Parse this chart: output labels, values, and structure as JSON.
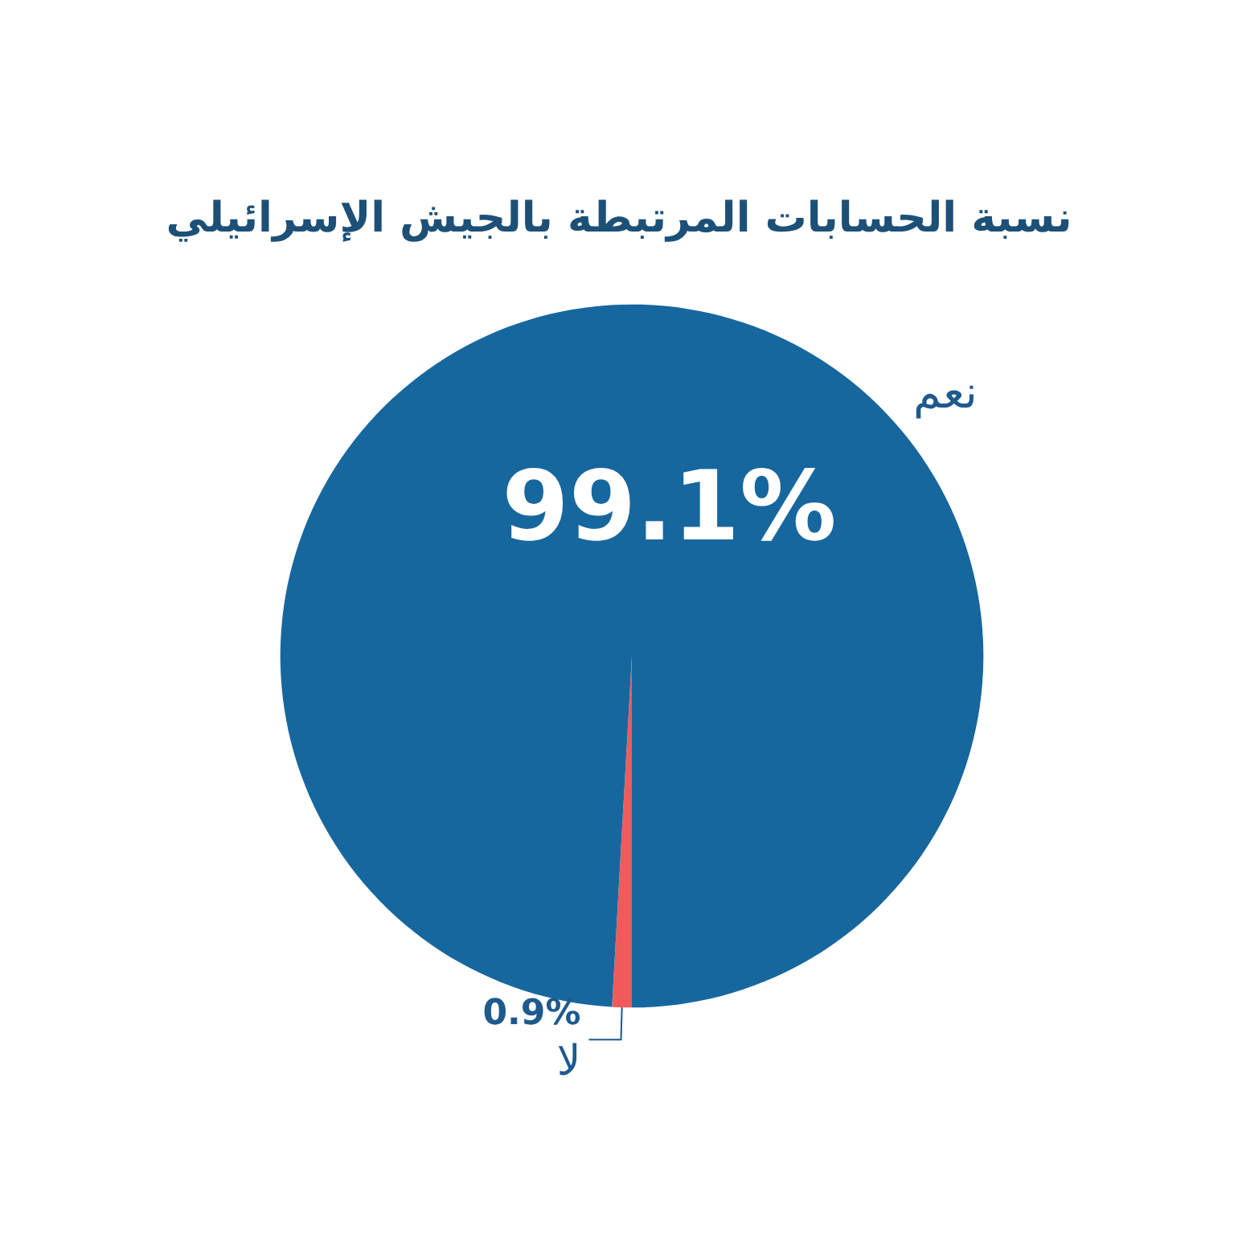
{
  "chart_data": {
    "type": "pie",
    "title": "نسبة الحسابات المرتبطة بالجيش الإسرائيلي",
    "categories": [
      "لا",
      "نعم"
    ],
    "values": [
      0.9,
      99.1
    ],
    "colors": [
      "#ef5b5b",
      "#17679f"
    ],
    "value_labels": [
      "0.9%",
      "99.1%"
    ],
    "legend": false
  }
}
